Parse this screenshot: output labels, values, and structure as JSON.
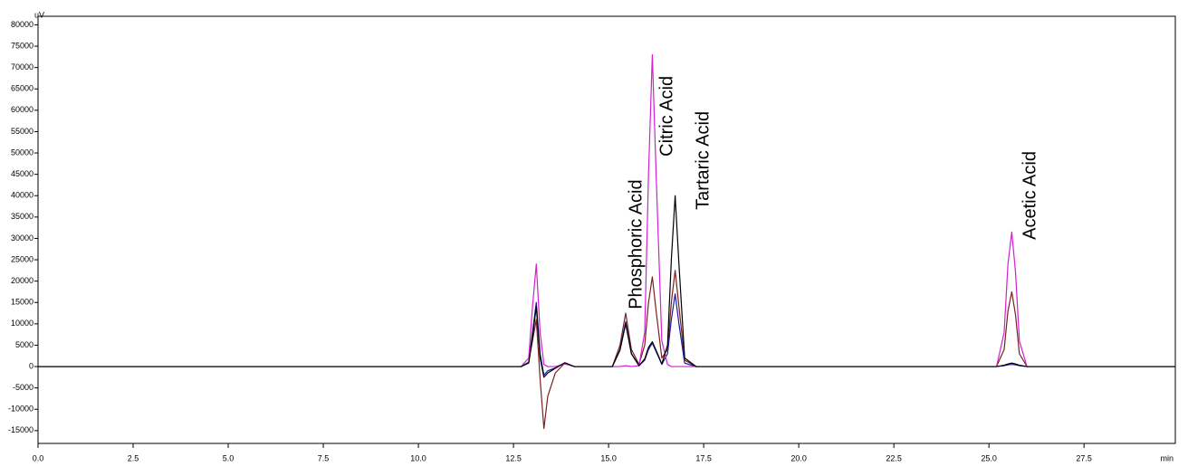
{
  "chart_data": {
    "type": "line",
    "xlabel": "min",
    "ylabel": "uV",
    "xlim": [
      0,
      29.9
    ],
    "ylim": [
      -18000,
      82000
    ],
    "xticks": [
      {
        "value": 0,
        "label": "0.0"
      },
      2.5,
      {
        "value": 5,
        "label": "5.0"
      },
      7.5,
      {
        "value": 10,
        "label": "10.0"
      },
      12.5,
      {
        "value": 15,
        "label": "15.0"
      },
      17.5,
      {
        "value": 20,
        "label": "20.0"
      },
      22.5,
      {
        "value": 25,
        "label": "25.0"
      },
      27.5
    ],
    "yticks": [
      -15000,
      -10000,
      -5000,
      0,
      5000,
      10000,
      15000,
      20000,
      25000,
      30000,
      35000,
      40000,
      45000,
      50000,
      55000,
      60000,
      65000,
      70000,
      75000,
      80000
    ],
    "x": [
      0,
      12.7,
      12.9,
      13.0,
      13.1,
      13.2,
      13.3,
      13.4,
      13.6,
      13.85,
      14.1,
      15.1,
      15.3,
      15.45,
      15.6,
      15.8,
      15.95,
      16.05,
      16.15,
      16.25,
      16.4,
      16.55,
      16.65,
      16.75,
      16.85,
      17.0,
      17.3,
      25.2,
      25.4,
      25.5,
      25.6,
      25.7,
      25.8,
      26.0,
      29.9
    ],
    "series": [
      {
        "color": "#7b1f1f",
        "values": [
          0,
          0,
          1000,
          6000,
          11000,
          -3000,
          -14500,
          -7000,
          -1500,
          800,
          0,
          0,
          5000,
          12500,
          4000,
          500,
          5000,
          15000,
          21000,
          13000,
          2000,
          4000,
          15000,
          22500,
          14000,
          1500,
          0,
          0,
          4000,
          13000,
          17500,
          12000,
          3000,
          0,
          0
        ]
      },
      {
        "color": "#1a1aa6",
        "values": [
          0,
          0,
          1000,
          8000,
          15000,
          3000,
          -2000,
          -1000,
          -300,
          800,
          0,
          0,
          4000,
          10500,
          3000,
          200,
          1500,
          4000,
          5500,
          3500,
          500,
          3000,
          11000,
          17000,
          10000,
          800,
          0,
          0,
          200,
          400,
          500,
          400,
          200,
          0,
          0
        ]
      },
      {
        "color": "#d020d0",
        "values": [
          0,
          0,
          2000,
          14000,
          24000,
          8000,
          500,
          0,
          0,
          600,
          0,
          0,
          0,
          200,
          0,
          200,
          8000,
          45000,
          73000,
          45000,
          6000,
          500,
          0,
          0,
          0,
          0,
          0,
          0,
          8000,
          24000,
          31500,
          22000,
          6000,
          0,
          0
        ]
      },
      {
        "color": "#000000",
        "values": [
          0,
          0,
          800,
          7000,
          14000,
          2000,
          -2500,
          -1500,
          -400,
          900,
          0,
          0,
          3800,
          10000,
          3000,
          200,
          1800,
          4500,
          5800,
          3800,
          600,
          5000,
          25000,
          40000,
          24000,
          2000,
          0,
          0,
          300,
          600,
          800,
          600,
          300,
          0,
          0
        ]
      }
    ],
    "annotations": [
      {
        "text": "Phosphoric Acid",
        "x": 15.74,
        "y": 13400
      },
      {
        "text": "Citric Acid",
        "x": 16.55,
        "y": 49200
      },
      {
        "text": "Tartaric Acid",
        "x": 17.5,
        "y": 36700
      },
      {
        "text": "Acetic Acid",
        "x": 26.1,
        "y": 29700
      }
    ]
  }
}
